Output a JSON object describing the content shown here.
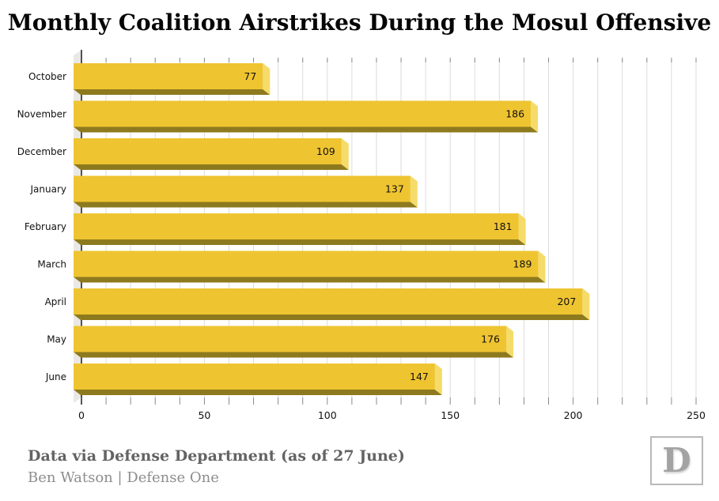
{
  "title": "Monthly Coalition Airstrikes During the Mosul Offensive",
  "chart_data": {
    "type": "bar",
    "orientation": "horizontal",
    "title": "Monthly Coalition Airstrikes During the Mosul Offensive",
    "categories": [
      "October",
      "November",
      "December",
      "January",
      "February",
      "March",
      "April",
      "May",
      "June"
    ],
    "values": [
      77,
      186,
      109,
      137,
      181,
      189,
      207,
      176,
      147
    ],
    "xlabel": "",
    "ylabel": "",
    "xlim": [
      0,
      250
    ],
    "xticks": [
      0,
      50,
      100,
      150,
      200,
      250
    ],
    "xtick_labels": [
      "0",
      "50",
      "100",
      "150",
      "200",
      "250"
    ],
    "minor_tick_step": 10,
    "grid": true,
    "legend": false,
    "style_3d": true,
    "colors": {
      "bar_face": "#efc431",
      "bar_end_bevel": "#f5db69",
      "bar_bottom": "#8e7a1e",
      "zero_wall": "#e9e8e5",
      "axis_line": "#1c1c1c",
      "gridline": "#dcdcdc",
      "tick": "#8a8a8a",
      "label_text": "#111111"
    }
  },
  "footer": {
    "source_line": "Data via Defense Department (as of 27 June)",
    "byline": "Ben Watson | Defense One",
    "logo_letter": "D"
  }
}
